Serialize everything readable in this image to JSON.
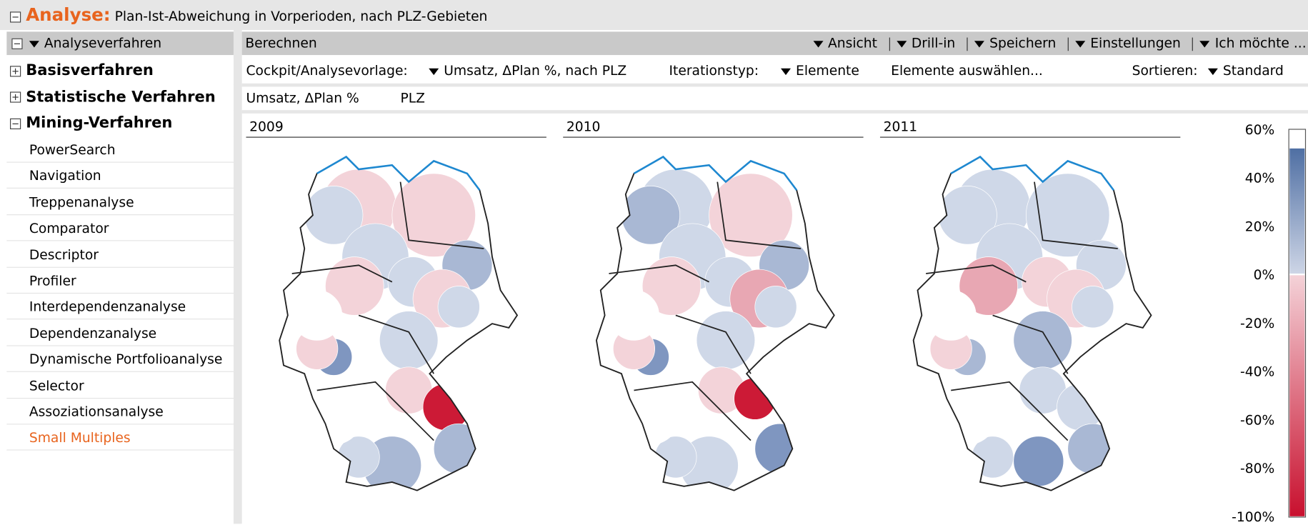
{
  "header": {
    "title": "Analyse:",
    "subtitle": "Plan-Ist-Abweichung in Vorperioden, nach PLZ-Gebieten"
  },
  "sidebar": {
    "heading": "Analyseverfahren",
    "groups": [
      "Basisverfahren",
      "Statistische Verfahren",
      "Mining-Verfahren"
    ],
    "items": [
      "PowerSearch",
      "Navigation",
      "Treppenanalyse",
      "Comparator",
      "Descriptor",
      "Profiler",
      "Interdependenzanalyse",
      "Dependenzanalyse",
      "Dynamische Portfolioanalyse",
      "Selector",
      "Assoziationsanalyse",
      "Small Multiples"
    ]
  },
  "toolbar": {
    "action": "Berechnen",
    "menus": [
      "Ansicht",
      "Drill-in",
      "Speichern",
      "Einstellungen",
      "Ich möchte ..."
    ]
  },
  "options": {
    "template_label": "Cockpit/Analysevorlage:",
    "template": "Umsatz, ΔPlan %, nach PLZ",
    "iteration_label": "Iterationstyp:",
    "iteration": "Elemente",
    "select": "Elemente auswählen...",
    "sort_label": "Sortieren:",
    "sort": "Standard"
  },
  "breadcrumb": [
    "Umsatz, ΔPlan %",
    "PLZ"
  ],
  "panels": [
    "2009",
    "2010",
    "2011"
  ],
  "legend": [
    "60%",
    "40%",
    "20%",
    "0%",
    "-20%",
    "-40%",
    "-60%",
    "-80%",
    "-100%"
  ]
}
